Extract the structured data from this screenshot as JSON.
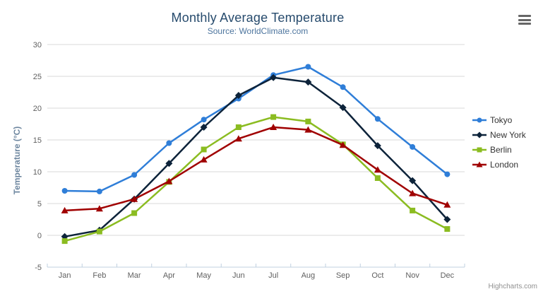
{
  "chart_data": {
    "type": "line",
    "title": "Monthly Average Temperature",
    "subtitle": "Source: WorldClimate.com",
    "xlabel": "",
    "ylabel": "Temperature (°C)",
    "categories": [
      "Jan",
      "Feb",
      "Mar",
      "Apr",
      "May",
      "Jun",
      "Jul",
      "Aug",
      "Sep",
      "Oct",
      "Nov",
      "Dec"
    ],
    "ylim": [
      -5,
      30
    ],
    "yticks": [
      30,
      25,
      20,
      15,
      10,
      5,
      0,
      -5
    ],
    "grid": true,
    "legend_position": "right",
    "series": [
      {
        "name": "Tokyo",
        "marker": "circle",
        "color": "#2f7ed8",
        "values": [
          7.0,
          6.9,
          9.5,
          14.5,
          18.2,
          21.5,
          25.2,
          26.5,
          23.3,
          18.3,
          13.9,
          9.6
        ]
      },
      {
        "name": "New York",
        "marker": "diamond",
        "color": "#0d233a",
        "values": [
          -0.2,
          0.8,
          5.7,
          11.3,
          17.0,
          22.0,
          24.8,
          24.1,
          20.1,
          14.1,
          8.6,
          2.5
        ]
      },
      {
        "name": "Berlin",
        "marker": "square",
        "color": "#8bbc21",
        "values": [
          -0.9,
          0.6,
          3.5,
          8.4,
          13.5,
          17.0,
          18.6,
          17.9,
          14.3,
          9.0,
          3.9,
          1.0
        ]
      },
      {
        "name": "London",
        "marker": "triangle",
        "color": "#a00000",
        "values": [
          3.9,
          4.2,
          5.7,
          8.5,
          11.9,
          15.2,
          17.0,
          16.6,
          14.2,
          10.3,
          6.6,
          4.8
        ]
      }
    ]
  },
  "colors": {
    "title": "#274b6d",
    "subtitle": "#4d759e",
    "axis_label": "#606060",
    "gridline": "#d8d8d8",
    "axis_line": "#c0d0e0",
    "legend_text": "#333333",
    "credits": "#909090"
  },
  "icons": {
    "export_menu": "hamburger-icon"
  },
  "credits": {
    "label": "Highcharts.com"
  }
}
